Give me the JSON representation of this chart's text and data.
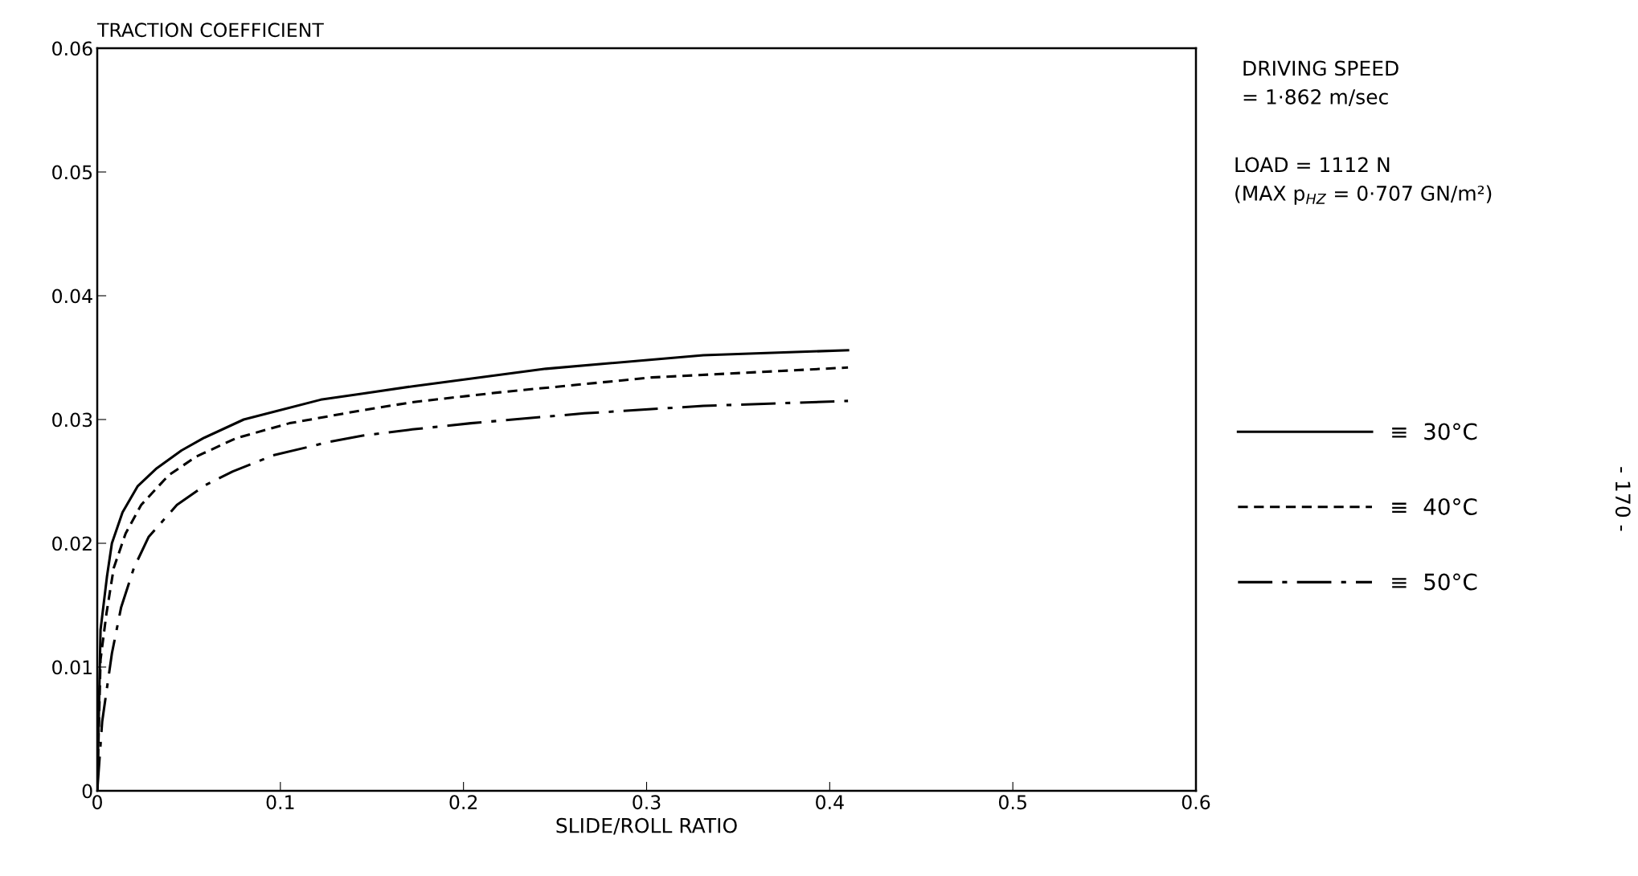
{
  "chart_data": {
    "type": "line",
    "ylabel": "TRACTION COEFFICIENT",
    "xlabel": "SLIDE/ROLL RATIO",
    "xlim": [
      0,
      0.6
    ],
    "ylim": [
      0,
      0.06
    ],
    "xticks": [
      0,
      0.1,
      0.2,
      0.3,
      0.4,
      0.5,
      0.6
    ],
    "yticks": [
      0,
      0.01,
      0.02,
      0.03,
      0.04,
      0.05,
      0.06
    ],
    "grid": false,
    "legend": "right",
    "marker": "none",
    "series": [
      {
        "name": "≡  30°C",
        "color": "#000000",
        "line_style": "solid",
        "x": [
          0,
          0.0018,
          0.0053,
          0.008,
          0.0138,
          0.022,
          0.032,
          0.046,
          0.058,
          0.08,
          0.122,
          0.145,
          0.173,
          0.245,
          0.331,
          0.41
        ],
        "values": [
          0,
          0.013,
          0.0173,
          0.02,
          0.0225,
          0.0246,
          0.026,
          0.0275,
          0.0285,
          0.03,
          0.0316,
          0.0321,
          0.0327,
          0.0341,
          0.0352,
          0.0356
        ]
      },
      {
        "name": "≡  40°C",
        "color": "#000000",
        "line_style": "dashed",
        "x": [
          0,
          0.0018,
          0.005,
          0.009,
          0.0155,
          0.024,
          0.039,
          0.054,
          0.076,
          0.105,
          0.139,
          0.172,
          0.22,
          0.303,
          0.41
        ],
        "values": [
          0,
          0.0106,
          0.0143,
          0.018,
          0.0208,
          0.0231,
          0.0255,
          0.027,
          0.0285,
          0.0297,
          0.0306,
          0.0314,
          0.0322,
          0.0334,
          0.0342
        ]
      },
      {
        "name": "≡  50°C",
        "color": "#000000",
        "line_style": "dashdot",
        "x": [
          0,
          0.0027,
          0.008,
          0.013,
          0.02,
          0.028,
          0.0435,
          0.059,
          0.074,
          0.096,
          0.127,
          0.145,
          0.172,
          0.204,
          0.266,
          0.331,
          0.41
        ],
        "values": [
          0,
          0.0056,
          0.0111,
          0.0148,
          0.018,
          0.0205,
          0.0231,
          0.0247,
          0.0258,
          0.0271,
          0.0282,
          0.0287,
          0.0292,
          0.0297,
          0.0305,
          0.0311,
          0.0315
        ]
      }
    ],
    "annotations": [
      "DRIVING SPEED\n= 1·862 m/sec",
      "LOAD = 1112 N\n(MAX p$_{HZ}$ = 0·707 GN/m²)",
      "- 170 -"
    ]
  }
}
